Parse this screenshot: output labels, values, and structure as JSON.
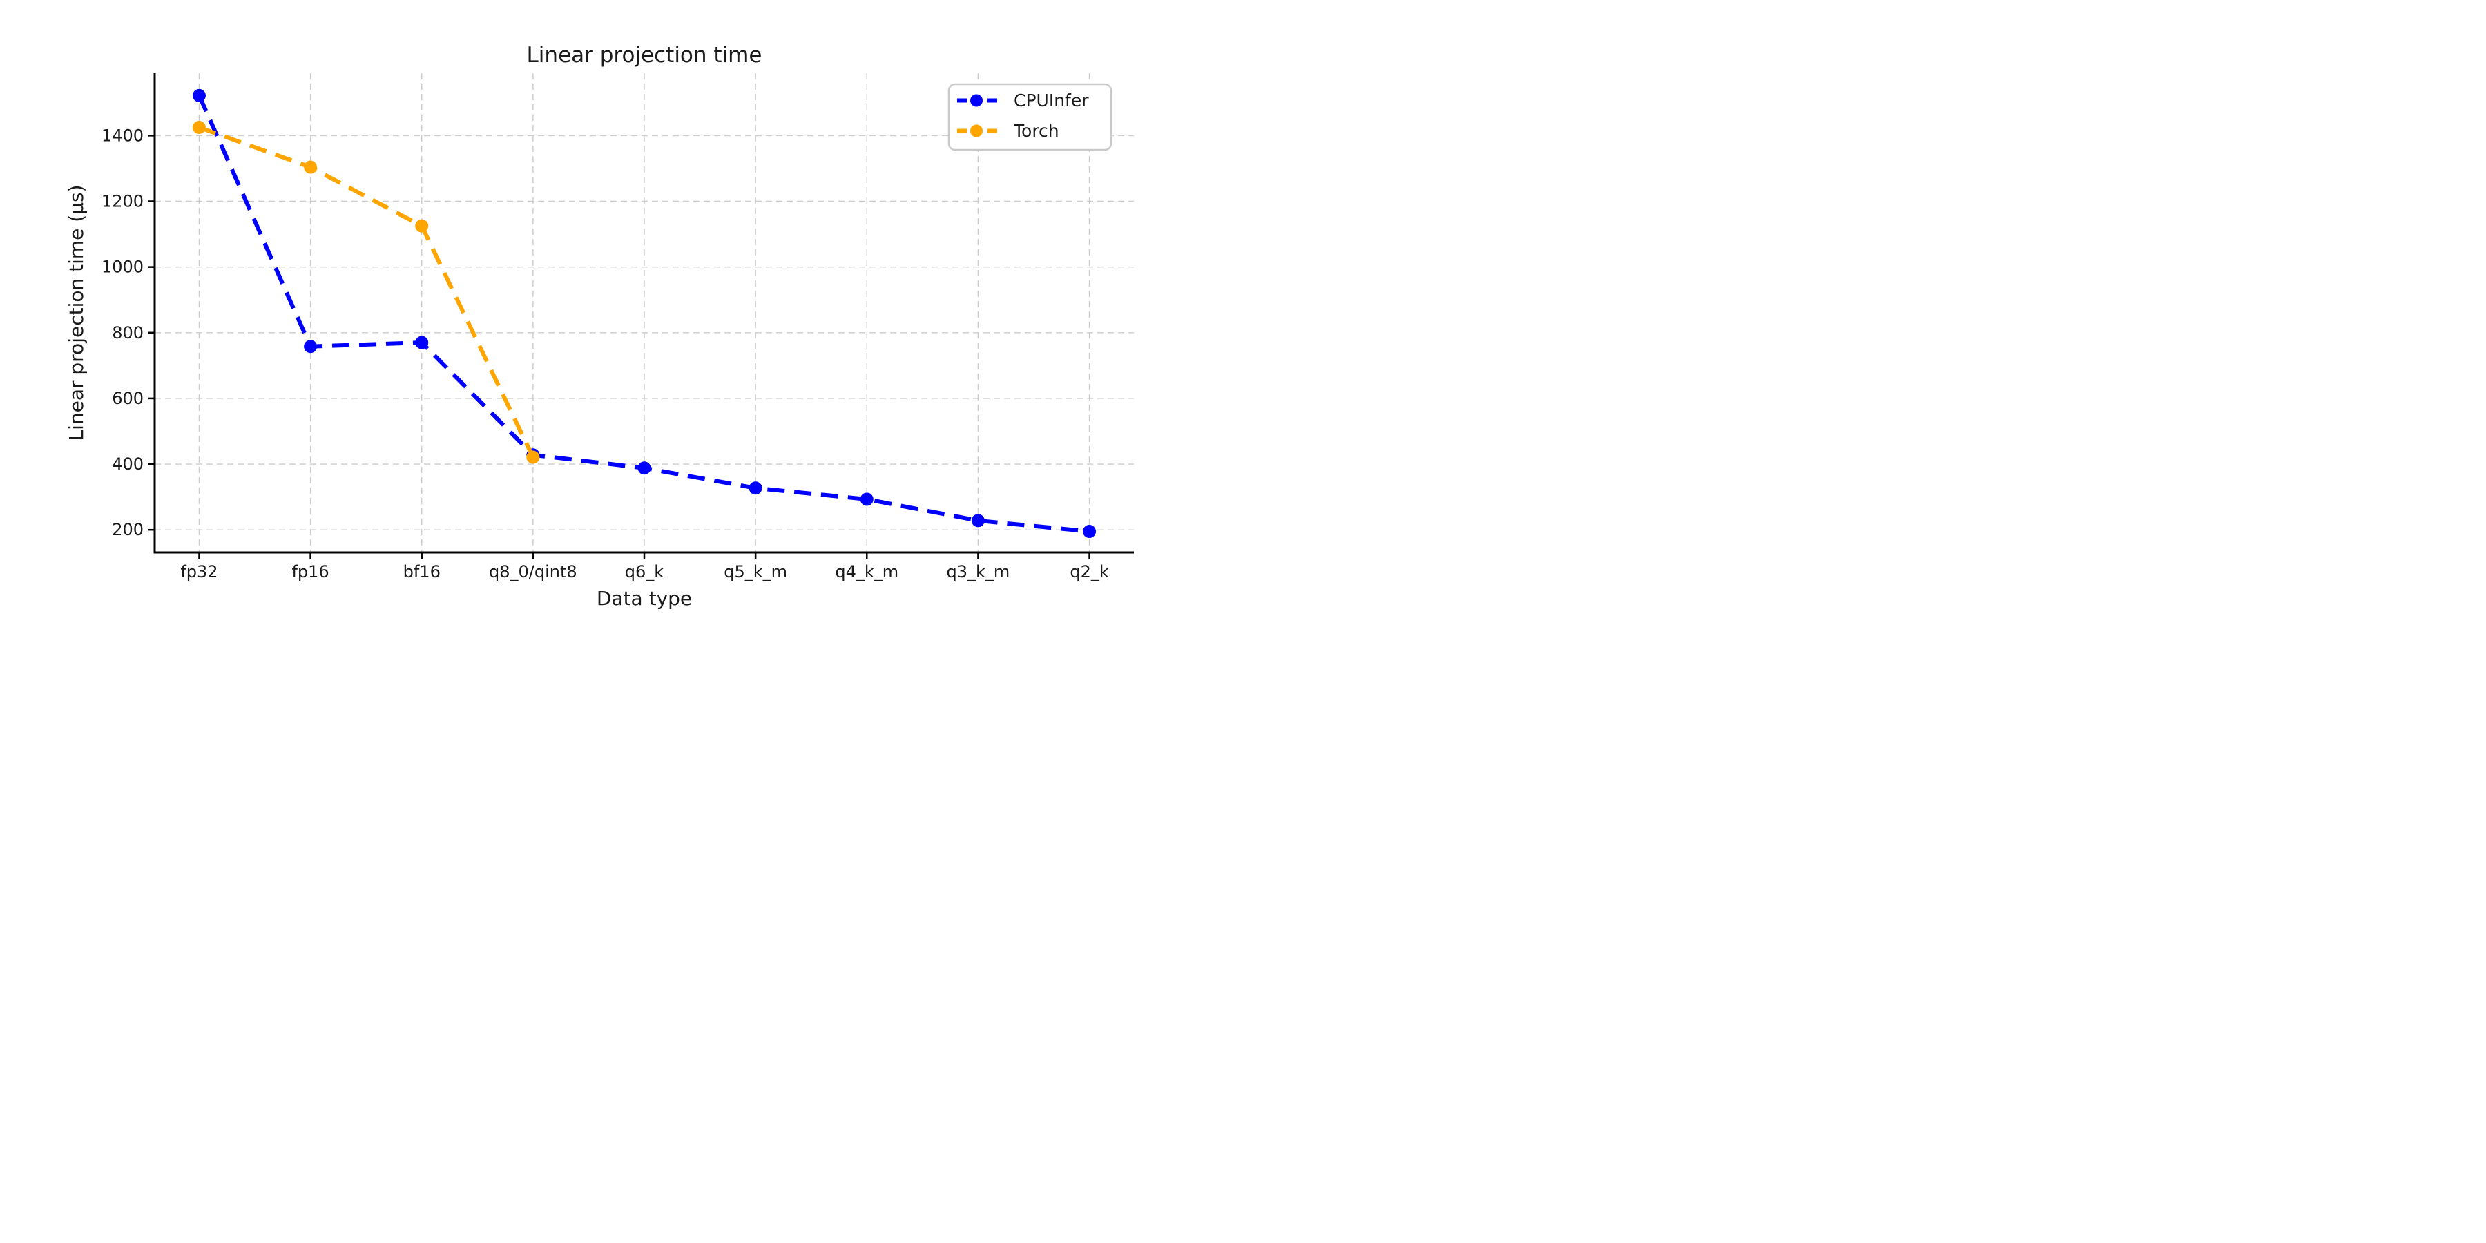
{
  "figure": {
    "background": "#ffffff",
    "text_color": "#1a1a1a",
    "spine_color": "#000000",
    "grid_color": "#cccccc",
    "legend_border_color": "#c9c9c9"
  },
  "chart_data": {
    "type": "line",
    "title": "Linear projection time",
    "xlabel": "Data type",
    "ylabel": "Linear projection time (μs)",
    "categories": [
      "fp32",
      "fp16",
      "bf16",
      "q8_0/qint8",
      "q6_k",
      "q5_k_m",
      "q4_k_m",
      "q3_k_m",
      "q2_k"
    ],
    "series": [
      {
        "name": "CPUInfer",
        "color": "#0000ff",
        "line_style": "dashed",
        "marker": "circle",
        "values": [
          1522,
          758,
          770,
          428,
          388,
          327,
          293,
          228,
          195
        ]
      },
      {
        "name": "Torch",
        "color": "#ffa500",
        "line_style": "dashed",
        "marker": "circle",
        "values": [
          1425,
          1304,
          1125,
          421,
          null,
          null,
          null,
          null,
          null
        ]
      }
    ],
    "yticks": [
      200,
      400,
      600,
      800,
      1000,
      1200,
      1400
    ],
    "ylim": [
      131,
      1590
    ],
    "x_margin_units": 0.4,
    "grid": true,
    "legend_position": "upper right"
  }
}
